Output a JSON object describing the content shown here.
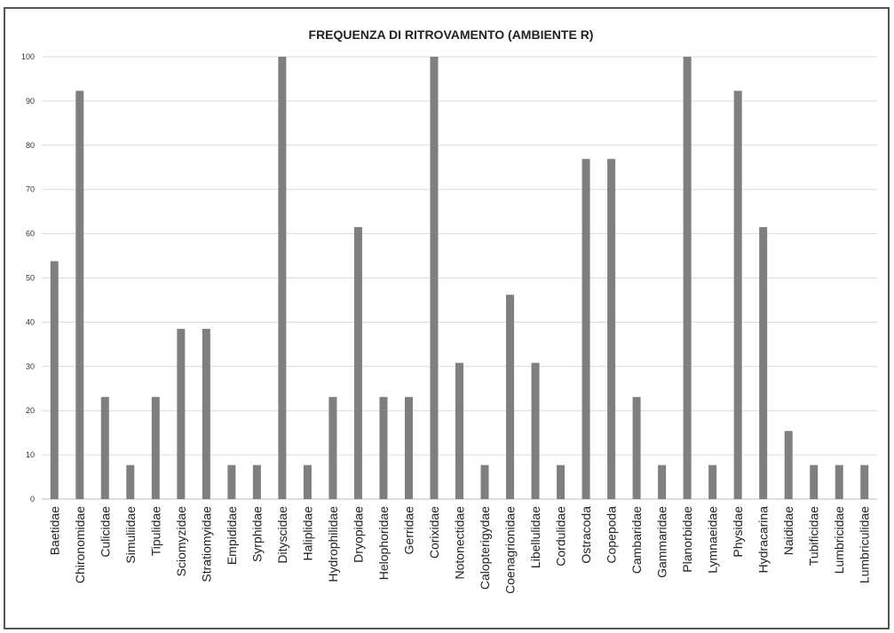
{
  "chart_data": {
    "type": "bar",
    "title": "FREQUENZA DI RITROVAMENTO (AMBIENTE R)",
    "xlabel": "",
    "ylabel": "",
    "ylim": [
      0,
      100
    ],
    "yticks": [
      "0",
      "10",
      "20",
      "30",
      "40",
      "50",
      "60",
      "70",
      "80",
      "90",
      "100"
    ],
    "grid": true,
    "bar_color": "#7f7f7f",
    "categories": [
      "Baetidae",
      "Chironomidae",
      "Culicidae",
      "Simuliidae",
      "Tipulidae",
      "Sciomyzidae",
      "Stratiomyidae",
      "Empididae",
      "Syrphidae",
      "Dityscidae",
      "Haliplidae",
      "Hydrophilidae",
      "Dryopidae",
      "Helophoridae",
      "Gerridae",
      "Corixidae",
      "Notonectidae",
      "Calopterigydae",
      "Coenagrionidae",
      "Libellulidae",
      "Cordulidae",
      "Ostracoda",
      "Copepoda",
      "Cambaridae",
      "Gammaridae",
      "Planorbidae",
      "Lymnaeidae",
      "Physidae",
      "Hydracarina",
      "Naididae",
      "Tubificidae",
      "Lumbricidae",
      "Lumbriculidae"
    ],
    "values": [
      53.8,
      92.3,
      23.1,
      7.7,
      23.1,
      38.5,
      38.5,
      7.7,
      7.7,
      100,
      7.7,
      23.1,
      61.5,
      23.1,
      23.1,
      100,
      30.8,
      7.7,
      46.2,
      30.8,
      7.7,
      76.9,
      76.9,
      23.1,
      7.7,
      100,
      7.7,
      92.3,
      61.5,
      15.4,
      7.7,
      7.7,
      7.7
    ]
  }
}
